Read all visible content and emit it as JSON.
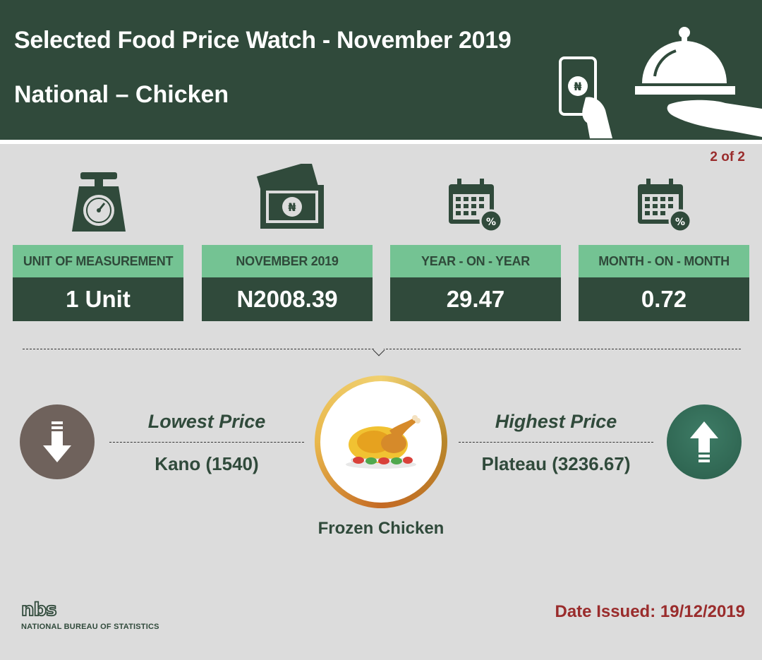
{
  "header": {
    "title": "Selected Food Price Watch - November 2019",
    "subtitle": "National – Chicken",
    "icons": [
      "hand-phone-naira-icon",
      "serving-cloche-icon"
    ]
  },
  "page_indicator": "2 of 2",
  "cards": [
    {
      "label": "UNIT OF MEASUREMENT",
      "value": "1 Unit",
      "icon": "weighing-scale-icon"
    },
    {
      "label": "NOVEMBER 2019",
      "value": "N2008.39",
      "icon": "naira-banknotes-icon"
    },
    {
      "label": "YEAR - ON - YEAR",
      "value": "29.47",
      "icon": "calendar-percent-icon"
    },
    {
      "label": "MONTH - ON - MONTH",
      "value": "0.72",
      "icon": "calendar-percent-icon"
    }
  ],
  "lowest": {
    "title": "Lowest Price",
    "value": "Kano (1540)",
    "icon": "arrow-down-icon"
  },
  "highest": {
    "title": "Highest Price",
    "value": "Plateau (3236.67)",
    "icon": "arrow-up-icon"
  },
  "product": {
    "name": "Frozen Chicken",
    "icon": "roast-chicken-icon"
  },
  "footer": {
    "logo_text": "nbs",
    "org": "NATIONAL BUREAU OF STATISTICS",
    "date_issued": "Date Issued: 19/12/2019"
  },
  "colors": {
    "dark_green": "#304a3b",
    "light_green": "#74c393",
    "background": "#dcdcdc",
    "accent_red": "#9a2c2c",
    "brown": "#6f625c",
    "teal": "#2f6a55"
  }
}
